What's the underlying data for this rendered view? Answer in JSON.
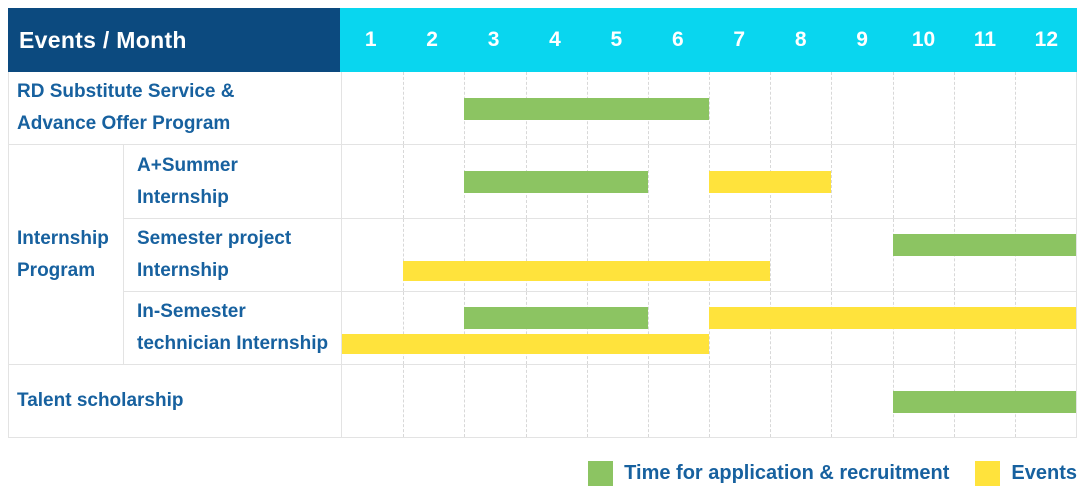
{
  "colors": {
    "header_bg": "#0C4A7F",
    "months_bg": "#09D6EF",
    "header_text": "#FFFFFF",
    "label_text": "#17619F",
    "green": "#8CC462",
    "yellow": "#FFE33C",
    "gridline": "#D8D8D8",
    "row_border": "#E3E3E3"
  },
  "header": {
    "label": "Events / Month",
    "months": [
      "1",
      "2",
      "3",
      "4",
      "5",
      "6",
      "7",
      "8",
      "9",
      "10",
      "11",
      "12"
    ]
  },
  "sections": [
    {
      "type": "row",
      "label": "RD Substitute Service & Advance Offer Program",
      "label_lines": [
        "RD Substitute Service &",
        "Advance Offer Program"
      ],
      "bars": [
        {
          "color": "green",
          "start_month": 3,
          "end_month": 6,
          "lane": "single"
        }
      ]
    },
    {
      "type": "group",
      "label": "Internship Program",
      "label_lines": [
        "Internship",
        "Program"
      ],
      "children": [
        {
          "label": "A+Summer Internship",
          "label_lines": [
            "A+Summer",
            "Internship"
          ],
          "bars": [
            {
              "color": "green",
              "start_month": 3,
              "end_month": 5,
              "lane": "single"
            },
            {
              "color": "yellow",
              "start_month": 7,
              "end_month": 8,
              "lane": "single"
            }
          ]
        },
        {
          "label": "Semester project Internship",
          "label_lines": [
            "Semester project",
            "Internship"
          ],
          "bars": [
            {
              "color": "green",
              "start_month": 10,
              "end_month": 12,
              "lane": "top"
            },
            {
              "color": "yellow",
              "start_month": 2,
              "end_month": 7,
              "lane": "bottom"
            }
          ]
        },
        {
          "label": "In-Semester technician Internship",
          "label_lines": [
            "In-Semester",
            "technician Internship"
          ],
          "bars": [
            {
              "color": "green",
              "start_month": 3,
              "end_month": 5,
              "lane": "top"
            },
            {
              "color": "yellow",
              "start_month": 7,
              "end_month": 12,
              "lane": "top"
            },
            {
              "color": "yellow",
              "start_month": 1,
              "end_month": 6,
              "lane": "bottom"
            }
          ]
        }
      ]
    },
    {
      "type": "row",
      "label": "Talent scholarship",
      "label_lines": [
        "Talent scholarship"
      ],
      "bars": [
        {
          "color": "green",
          "start_month": 10,
          "end_month": 12,
          "lane": "single"
        }
      ]
    }
  ],
  "legend": {
    "items": [
      {
        "color": "green",
        "label": "Time for application & recruitment"
      },
      {
        "color": "yellow",
        "label": "Events"
      }
    ]
  },
  "chart_data": {
    "type": "table",
    "title": "Events / Month",
    "x_axis": {
      "label": "Month",
      "ticks": [
        "1",
        "2",
        "3",
        "4",
        "5",
        "6",
        "7",
        "8",
        "9",
        "10",
        "11",
        "12"
      ],
      "range": [
        1,
        12
      ]
    },
    "legend_entries": [
      "Time for application & recruitment",
      "Events"
    ],
    "rows": [
      {
        "event": "RD Substitute Service & Advance Offer Program",
        "group": null,
        "spans": [
          {
            "series": "Time for application & recruitment",
            "months": [
              3,
              6
            ]
          }
        ]
      },
      {
        "event": "A+Summer Internship",
        "group": "Internship Program",
        "spans": [
          {
            "series": "Time for application & recruitment",
            "months": [
              3,
              5
            ]
          },
          {
            "series": "Events",
            "months": [
              7,
              8
            ]
          }
        ]
      },
      {
        "event": "Semester project Internship",
        "group": "Internship Program",
        "spans": [
          {
            "series": "Time for application & recruitment",
            "months": [
              10,
              12
            ]
          },
          {
            "series": "Events",
            "months": [
              2,
              7
            ]
          }
        ]
      },
      {
        "event": "In-Semester technician Internship",
        "group": "Internship Program",
        "spans": [
          {
            "series": "Time for application & recruitment",
            "months": [
              3,
              5
            ]
          },
          {
            "series": "Events",
            "months": [
              7,
              12
            ]
          },
          {
            "series": "Events",
            "months": [
              1,
              6
            ]
          }
        ]
      },
      {
        "event": "Talent scholarship",
        "group": null,
        "spans": [
          {
            "series": "Time for application & recruitment",
            "months": [
              10,
              12
            ]
          }
        ]
      }
    ]
  }
}
